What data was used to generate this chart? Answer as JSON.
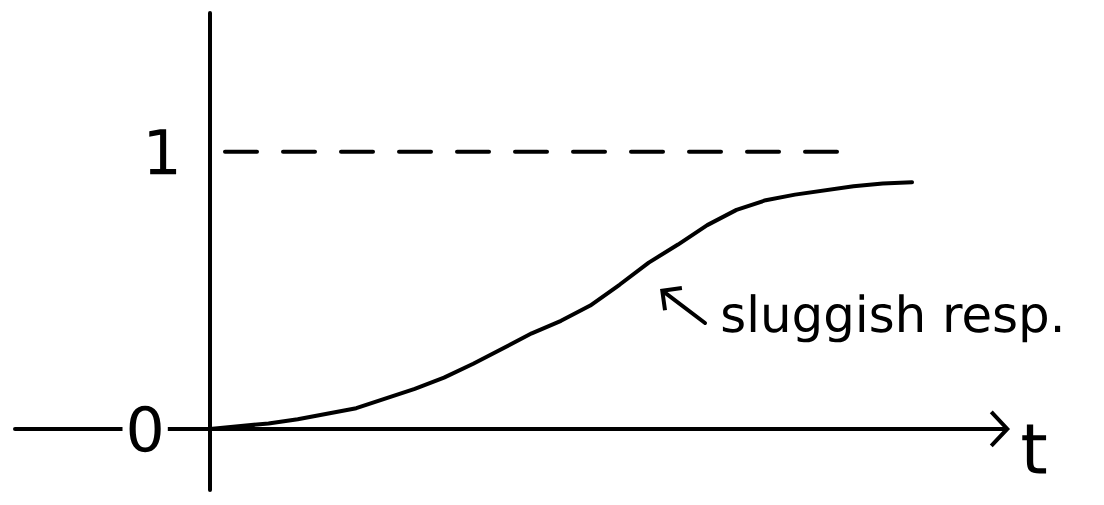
{
  "chart_data": {
    "type": "line",
    "xlabel": "t",
    "categories": [
      null,
      null,
      null,
      null,
      null,
      null,
      null,
      null,
      null,
      null,
      null,
      null,
      null,
      null,
      null,
      null,
      null,
      null,
      null,
      null,
      null,
      null,
      null,
      null,
      null
    ],
    "series": [
      {
        "color": "#000000",
        "values": [
          0,
          0.01,
          0.02,
          0.035,
          0.055,
          0.075,
          0.11,
          0.145,
          0.185,
          0.235,
          0.29,
          0.345,
          0.39,
          0.445,
          0.52,
          0.6,
          0.665,
          0.735,
          0.79,
          0.825,
          0.845,
          0.86,
          0.875,
          0.885,
          0.89
        ]
      }
    ],
    "ylim": [
      -0.22,
      1.5
    ],
    "yticks": [
      0,
      1
    ],
    "ref_lines": [
      {
        "axis": "y",
        "value": 1,
        "color": "#000000",
        "line_style": "dashed"
      }
    ],
    "annotations": [
      "sluggish resp."
    ],
    "marker": "none",
    "tick_labels": "y"
  }
}
